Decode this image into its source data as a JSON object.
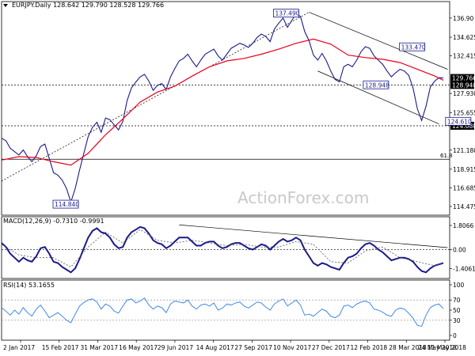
{
  "chart_data": {
    "type": "line",
    "symbol": "EURJPY.Daily",
    "ohlc": [
      "128.642",
      "129.790",
      "128.528",
      "129.766"
    ],
    "watermark": "ActionForex.com",
    "x_labels": [
      "2 Jan 2017",
      "15 Feb 2017",
      "31 Mar 2017",
      "16 May 2017",
      "29 Jun 2017",
      "14 Aug 2017",
      "27 Sep 2017",
      "10 Nov 2017",
      "27 Dec 2017",
      "12 Feb 2018",
      "28 Mar 2018",
      "11 May 2018"
    ],
    "x_last_label": "24 May 2018",
    "price_panel": {
      "y_ticks": [
        "136.90",
        "134.625",
        "132.415",
        "129.766",
        "128.940",
        "127.930",
        "125.655",
        "124.080",
        "121.180",
        "118.915",
        "116.685",
        "114.475"
      ],
      "ylim": [
        114.0,
        138.3
      ],
      "series": [
        {
          "name": "",
          "color": "#1a1a8c",
          "x": [
            0,
            5,
            10,
            15,
            20,
            25,
            30,
            35,
            40,
            45,
            50,
            55,
            60,
            65,
            70,
            75,
            80,
            85,
            90,
            95,
            100,
            105,
            110,
            115,
            120,
            125,
            130,
            135,
            140,
            145,
            150,
            155,
            160,
            165,
            170,
            175,
            180,
            185,
            190,
            195,
            200,
            205,
            210,
            215,
            220,
            225,
            230,
            235,
            240,
            245,
            250,
            255,
            260,
            265,
            270,
            275,
            280,
            285,
            290,
            295,
            300,
            305,
            310,
            315,
            320,
            325,
            330,
            335,
            340,
            345,
            350,
            355,
            360,
            365,
            370,
            375,
            380,
            385,
            390,
            395,
            400,
            405,
            410,
            415,
            420,
            425,
            430,
            435,
            440,
            445,
            450,
            455,
            460,
            465,
            470,
            475,
            480,
            485,
            490,
            495,
            500,
            505,
            510
          ],
          "y": [
            122.6,
            122.3,
            121.4,
            121.0,
            120.6,
            121.2,
            120.4,
            119.8,
            120.5,
            121.6,
            121.9,
            120.2,
            118.5,
            118.2,
            117.6,
            116.6,
            115.0,
            116.6,
            118.8,
            120.8,
            122.8,
            123.9,
            124.5,
            123.3,
            125.0,
            124.8,
            124.2,
            123.6,
            124.6,
            127.1,
            128.6,
            129.3,
            129.9,
            130.2,
            129.4,
            128.3,
            128.9,
            129.1,
            128.4,
            129.9,
            130.9,
            131.8,
            132.1,
            132.6,
            131.8,
            131.1,
            131.9,
            132.6,
            132.9,
            133.2,
            132.4,
            131.9,
            132.6,
            133.3,
            133.6,
            133.9,
            133.7,
            133.4,
            133.9,
            134.6,
            135.0,
            134.7,
            134.1,
            135.6,
            136.3,
            136.9,
            135.8,
            136.6,
            137.4,
            137.1,
            135.3,
            134.2,
            132.5,
            131.9,
            132.7,
            131.8,
            130.6,
            129.6,
            129.3,
            131.1,
            131.4,
            131.1,
            131.9,
            132.9,
            133.5,
            133.3,
            132.4,
            131.9,
            131.4,
            130.6,
            129.9,
            130.4,
            130.8,
            130.6,
            130.1,
            128.6,
            126.1,
            124.7,
            126.4,
            128.7,
            129.4,
            129.8,
            129.766
          ]
        },
        {
          "name": "",
          "color": "#e8001c",
          "x": [
            0,
            20,
            40,
            60,
            80,
            100,
            120,
            140,
            160,
            180,
            200,
            220,
            240,
            260,
            280,
            300,
            320,
            340,
            360,
            380,
            400,
            420,
            440,
            460,
            480,
            500,
            510
          ],
          "y": [
            120.0,
            120.4,
            120.3,
            119.8,
            119.4,
            120.8,
            123.0,
            124.9,
            126.9,
            128.1,
            128.8,
            130.0,
            131.1,
            131.8,
            132.1,
            132.6,
            133.2,
            133.9,
            134.4,
            133.8,
            132.5,
            132.2,
            132.0,
            131.6,
            130.8,
            130.0,
            129.5
          ]
        }
      ],
      "annotations": [
        {
          "text": "137.490",
          "x": 69,
          "y": 137.49
        },
        {
          "text": "133.470",
          "x": 97,
          "y": 133.47
        },
        {
          "text": "128.948",
          "x": 89,
          "y": 128.95
        },
        {
          "text": "124.610",
          "x": 108,
          "y": 124.61
        },
        {
          "text": "114.840",
          "x": 17,
          "y": 114.84
        },
        {
          "text": "61.8",
          "x": 109,
          "y": 120.1
        }
      ],
      "hlines": [
        128.94,
        124.08,
        120.1
      ],
      "last_price": "129.766"
    },
    "macd_panel": {
      "label": "MACD(12,26,9) -0.7310 -0.9991",
      "y_ticks": [
        "1.8066",
        "0.00",
        "-1.4061"
      ],
      "ylim": [
        -1.8,
        2.1
      ],
      "series": [
        {
          "name": "",
          "color": "#1a1a8c",
          "x": [
            0,
            5,
            10,
            15,
            20,
            25,
            30,
            35,
            40,
            45,
            50,
            55,
            60,
            65,
            70,
            75,
            80,
            85,
            90,
            95,
            100,
            105,
            110,
            115,
            120,
            125,
            130,
            135,
            140,
            145,
            150,
            155,
            160,
            165,
            170,
            175,
            180,
            185,
            190,
            195,
            200,
            205,
            210,
            215,
            220,
            225,
            230,
            235,
            240,
            245,
            250,
            255,
            260,
            265,
            270,
            275,
            280,
            285,
            290,
            295,
            300,
            305,
            310,
            315,
            320,
            325,
            330,
            335,
            340,
            345,
            350,
            355,
            360,
            365,
            370,
            375,
            380,
            385,
            390,
            395,
            400,
            405,
            410,
            415,
            420,
            425,
            430,
            435,
            440,
            445,
            450,
            455,
            460,
            465,
            470,
            475,
            480,
            485,
            490,
            495,
            500,
            505,
            510
          ],
          "y": [
            0.5,
            0.2,
            -0.3,
            -0.6,
            -0.9,
            -0.6,
            -0.8,
            -0.9,
            -0.5,
            0.1,
            0.2,
            -0.3,
            -0.9,
            -1.0,
            -1.3,
            -1.5,
            -1.7,
            -1.4,
            -0.7,
            0.1,
            0.9,
            1.4,
            1.6,
            1.3,
            1.2,
            0.9,
            0.4,
            0.1,
            0.2,
            0.9,
            1.3,
            1.5,
            1.7,
            1.6,
            1.2,
            0.7,
            0.5,
            0.4,
            0.1,
            0.3,
            0.6,
            0.9,
            0.9,
            0.9,
            0.6,
            0.3,
            0.3,
            0.5,
            0.6,
            0.6,
            0.3,
            0.1,
            0.2,
            0.4,
            0.5,
            0.5,
            0.3,
            0.1,
            0.0,
            0.2,
            0.4,
            0.3,
            0.0,
            0.3,
            0.6,
            0.8,
            0.6,
            0.7,
            0.9,
            0.7,
            0.0,
            -0.5,
            -1.0,
            -1.2,
            -1.0,
            -1.1,
            -1.3,
            -1.4,
            -1.5,
            -1.0,
            -0.6,
            -0.5,
            -0.3,
            0.1,
            0.4,
            0.5,
            0.3,
            0.0,
            -0.2,
            -0.5,
            -0.8,
            -0.7,
            -0.6,
            -0.6,
            -0.7,
            -0.9,
            -1.3,
            -1.6,
            -1.7,
            -1.4,
            -1.2,
            -1.1,
            -1.0
          ]
        },
        {
          "name": "",
          "color": "#555555",
          "dashed": true,
          "x": [
            0,
            20,
            40,
            60,
            80,
            100,
            120,
            140,
            160,
            180,
            200,
            220,
            240,
            260,
            280,
            300,
            320,
            340,
            360,
            380,
            400,
            420,
            440,
            460,
            480,
            500,
            510
          ],
          "y": [
            0.4,
            -0.4,
            -0.6,
            -0.6,
            -1.3,
            0.2,
            1.3,
            0.5,
            1.5,
            0.7,
            0.5,
            0.7,
            0.5,
            0.3,
            0.4,
            0.2,
            0.2,
            0.6,
            0.4,
            -0.9,
            -1.0,
            -0.1,
            0.2,
            -0.6,
            -0.9,
            -1.2,
            -1.0
          ]
        }
      ]
    },
    "rsi_panel": {
      "label": "RSI(14) 53.1655",
      "y_ticks": [
        "100",
        "70",
        "50",
        "30",
        "0"
      ],
      "ylim": [
        0,
        100
      ],
      "series": [
        {
          "name": "",
          "color": "#2b7de9",
          "x": [
            0,
            5,
            10,
            15,
            20,
            25,
            30,
            35,
            40,
            45,
            50,
            55,
            60,
            65,
            70,
            75,
            80,
            85,
            90,
            95,
            100,
            105,
            110,
            115,
            120,
            125,
            130,
            135,
            140,
            145,
            150,
            155,
            160,
            165,
            170,
            175,
            180,
            185,
            190,
            195,
            200,
            205,
            210,
            215,
            220,
            225,
            230,
            235,
            240,
            245,
            250,
            255,
            260,
            265,
            270,
            275,
            280,
            285,
            290,
            295,
            300,
            305,
            310,
            315,
            320,
            325,
            330,
            335,
            340,
            345,
            350,
            355,
            360,
            365,
            370,
            375,
            380,
            385,
            390,
            395,
            400,
            405,
            410,
            415,
            420,
            425,
            430,
            435,
            440,
            445,
            450,
            455,
            460,
            465,
            470,
            475,
            480,
            485,
            490,
            495,
            500,
            505,
            510
          ],
          "y": [
            55,
            48,
            40,
            50,
            42,
            55,
            45,
            38,
            52,
            60,
            48,
            35,
            40,
            45,
            38,
            30,
            25,
            42,
            58,
            65,
            70,
            72,
            66,
            52,
            62,
            58,
            48,
            44,
            58,
            70,
            72,
            64,
            68,
            74,
            60,
            52,
            58,
            55,
            45,
            62,
            68,
            66,
            64,
            70,
            58,
            52,
            60,
            62,
            58,
            64,
            50,
            54,
            62,
            60,
            64,
            66,
            58,
            54,
            60,
            66,
            64,
            56,
            50,
            62,
            68,
            72,
            58,
            64,
            70,
            60,
            40,
            42,
            38,
            45,
            52,
            48,
            38,
            35,
            40,
            58,
            60,
            55,
            62,
            66,
            68,
            64,
            52,
            50,
            46,
            40,
            38,
            50,
            54,
            52,
            44,
            34,
            20,
            18,
            40,
            55,
            60,
            62,
            53
          ]
        }
      ]
    }
  }
}
